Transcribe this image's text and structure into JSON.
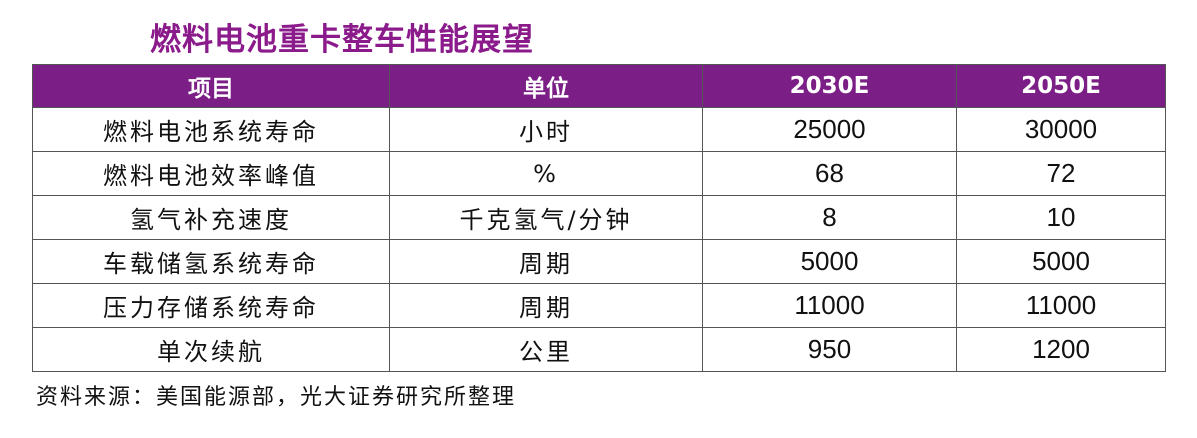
{
  "title": "燃料电池重卡整车性能展望",
  "table": {
    "headers": [
      "项目",
      "单位",
      "2030E",
      "2050E"
    ],
    "rows": [
      {
        "item": "燃料电池系统寿命",
        "unit": "小时",
        "v2030": "25000",
        "v2050": "30000"
      },
      {
        "item": "燃料电池效率峰值",
        "unit": "%",
        "v2030": "68",
        "v2050": "72"
      },
      {
        "item": "氢气补充速度",
        "unit": "千克氢气/分钟",
        "v2030": "8",
        "v2050": "10"
      },
      {
        "item": "车载储氢系统寿命",
        "unit": "周期",
        "v2030": "5000",
        "v2050": "5000"
      },
      {
        "item": "压力存储系统寿命",
        "unit": "周期",
        "v2030": "11000",
        "v2050": "11000"
      },
      {
        "item": "单次续航",
        "unit": "公里",
        "v2030": "950",
        "v2050": "1200"
      }
    ]
  },
  "source": "资料来源：美国能源部，光大证券研究所整理",
  "colors": {
    "title": "#8b1a8b",
    "header_bg": "#7b1f86",
    "header_text": "#ffffff"
  }
}
